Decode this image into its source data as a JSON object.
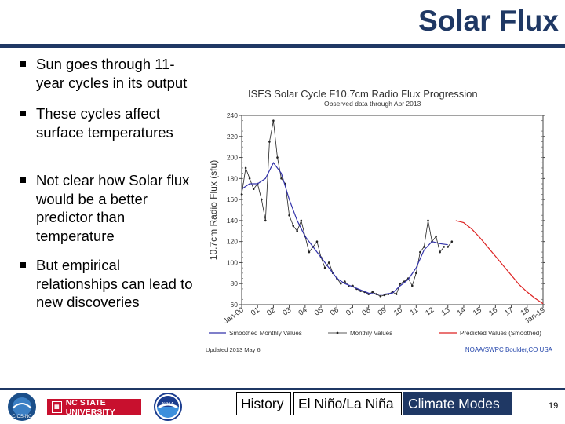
{
  "slide": {
    "title": "Solar Flux",
    "page_number": "19",
    "bullets": [
      "Sun goes through 11-year cycles in its output",
      "These cycles affect surface temperatures",
      "Not clear how Solar flux would be a better predictor than temperature",
      "But empirical relationships can lead to new discoveries"
    ]
  },
  "footer": {
    "logos": {
      "cics": "CICS-NC",
      "ncsu": "NC STATE UNIVERSITY",
      "noaa": "NOAA"
    },
    "nav": {
      "history": "History",
      "enso": "El Niño/La Niña",
      "climate_modes": "Climate Modes"
    }
  },
  "colors": {
    "title": "#1f3864",
    "observed": "#222222",
    "smoothed": "#3333aa",
    "predicted": "#dd2222"
  },
  "chart_data": {
    "type": "line",
    "title": "ISES Solar Cycle F10.7cm Radio Flux Progression",
    "subtitle": "Observed data through Apr 2013",
    "ylabel": "10.7cm Radio Flux (sfu)",
    "xlabel": "",
    "ylim": [
      60,
      240
    ],
    "yticks": [
      60,
      80,
      100,
      120,
      140,
      160,
      180,
      200,
      220,
      240
    ],
    "xlim": [
      2000,
      2019
    ],
    "xticks": [
      {
        "value": 2000,
        "label": "Jan-00"
      },
      {
        "value": 2001,
        "label": "01"
      },
      {
        "value": 2002,
        "label": "02"
      },
      {
        "value": 2003,
        "label": "03"
      },
      {
        "value": 2004,
        "label": "04"
      },
      {
        "value": 2005,
        "label": "05"
      },
      {
        "value": 2006,
        "label": "06"
      },
      {
        "value": 2007,
        "label": "07"
      },
      {
        "value": 2008,
        "label": "08"
      },
      {
        "value": 2009,
        "label": "09"
      },
      {
        "value": 2010,
        "label": "10"
      },
      {
        "value": 2011,
        "label": "11"
      },
      {
        "value": 2012,
        "label": "12"
      },
      {
        "value": 2013,
        "label": "13"
      },
      {
        "value": 2014,
        "label": "14"
      },
      {
        "value": 2015,
        "label": "15"
      },
      {
        "value": 2016,
        "label": "16"
      },
      {
        "value": 2017,
        "label": "17"
      },
      {
        "value": 2018,
        "label": "18"
      },
      {
        "value": 2019,
        "label": "Jan-19"
      }
    ],
    "series": [
      {
        "name": "Monthly Values",
        "style": "line-dots",
        "x": [
          2000.0,
          2000.25,
          2000.5,
          2000.75,
          2001.0,
          2001.25,
          2001.5,
          2001.75,
          2002.0,
          2002.25,
          2002.5,
          2002.75,
          2003.0,
          2003.25,
          2003.5,
          2003.75,
          2004.0,
          2004.25,
          2004.5,
          2004.75,
          2005.0,
          2005.25,
          2005.5,
          2005.75,
          2006.0,
          2006.25,
          2006.5,
          2006.75,
          2007.0,
          2007.25,
          2007.5,
          2007.75,
          2008.0,
          2008.25,
          2008.5,
          2008.75,
          2009.0,
          2009.25,
          2009.5,
          2009.75,
          2010.0,
          2010.25,
          2010.5,
          2010.75,
          2011.0,
          2011.25,
          2011.5,
          2011.75,
          2012.0,
          2012.25,
          2012.5,
          2012.75,
          2013.0,
          2013.25
        ],
        "values": [
          165,
          190,
          180,
          170,
          175,
          160,
          140,
          215,
          235,
          200,
          180,
          175,
          145,
          135,
          130,
          140,
          125,
          110,
          115,
          120,
          105,
          95,
          100,
          90,
          85,
          80,
          82,
          78,
          78,
          75,
          73,
          72,
          70,
          72,
          70,
          68,
          69,
          70,
          72,
          70,
          80,
          82,
          85,
          78,
          90,
          110,
          115,
          140,
          120,
          125,
          110,
          115,
          115,
          120
        ]
      },
      {
        "name": "Smoothed Monthly Values",
        "style": "line",
        "x": [
          2000.0,
          2000.5,
          2001.0,
          2001.5,
          2002.0,
          2002.5,
          2003.0,
          2003.5,
          2004.0,
          2004.5,
          2005.0,
          2005.5,
          2006.0,
          2006.5,
          2007.0,
          2007.5,
          2008.0,
          2008.5,
          2009.0,
          2009.5,
          2010.0,
          2010.5,
          2011.0,
          2011.5,
          2012.0,
          2012.5,
          2013.0
        ],
        "values": [
          170,
          175,
          175,
          180,
          195,
          185,
          160,
          140,
          125,
          115,
          105,
          95,
          85,
          80,
          77,
          74,
          71,
          70,
          70,
          71,
          78,
          84,
          95,
          112,
          120,
          118,
          117
        ]
      },
      {
        "name": "Predicted Values (Smoothed)",
        "style": "line",
        "x": [
          2013.5,
          2014.0,
          2014.5,
          2015.0,
          2015.5,
          2016.0,
          2016.5,
          2017.0,
          2017.5,
          2018.0,
          2018.5,
          2019.0
        ],
        "values": [
          140,
          138,
          132,
          124,
          115,
          106,
          97,
          88,
          79,
          72,
          66,
          61
        ]
      }
    ],
    "annotations": {
      "updated": "Updated 2013 May 6",
      "credit": "NOAA/SWPC Boulder,CO USA"
    },
    "legend": "bottom"
  }
}
